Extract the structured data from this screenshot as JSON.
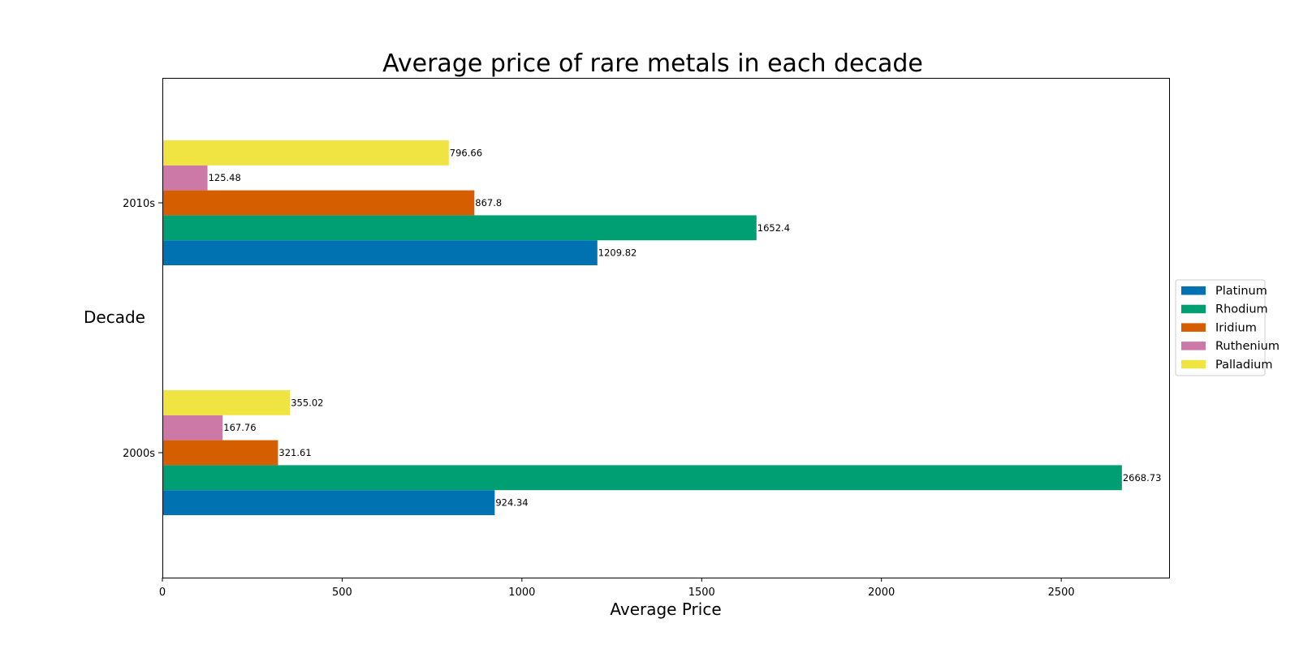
{
  "chart_data": {
    "type": "bar",
    "orientation": "horizontal",
    "title": "Average price of rare metals in each decade",
    "xlabel": "Average Price",
    "ylabel": "Decade",
    "categories": [
      "2000s",
      "2010s"
    ],
    "xlim": [
      0,
      2800
    ],
    "xticks": [
      0,
      500,
      1000,
      1500,
      2000,
      2500
    ],
    "grid": false,
    "legend_position": "center-right-outside",
    "series": [
      {
        "name": "Platinum",
        "color": "#0072b2",
        "values": [
          924.34,
          1209.82
        ]
      },
      {
        "name": "Rhodium",
        "color": "#009e73",
        "values": [
          2668.73,
          1652.4
        ]
      },
      {
        "name": "Iridium",
        "color": "#d55e00",
        "values": [
          321.61,
          867.8
        ]
      },
      {
        "name": "Ruthenium",
        "color": "#cc79a7",
        "values": [
          167.76,
          125.48
        ]
      },
      {
        "name": "Palladium",
        "color": "#f0e442",
        "values": [
          355.02,
          796.66
        ]
      }
    ]
  }
}
